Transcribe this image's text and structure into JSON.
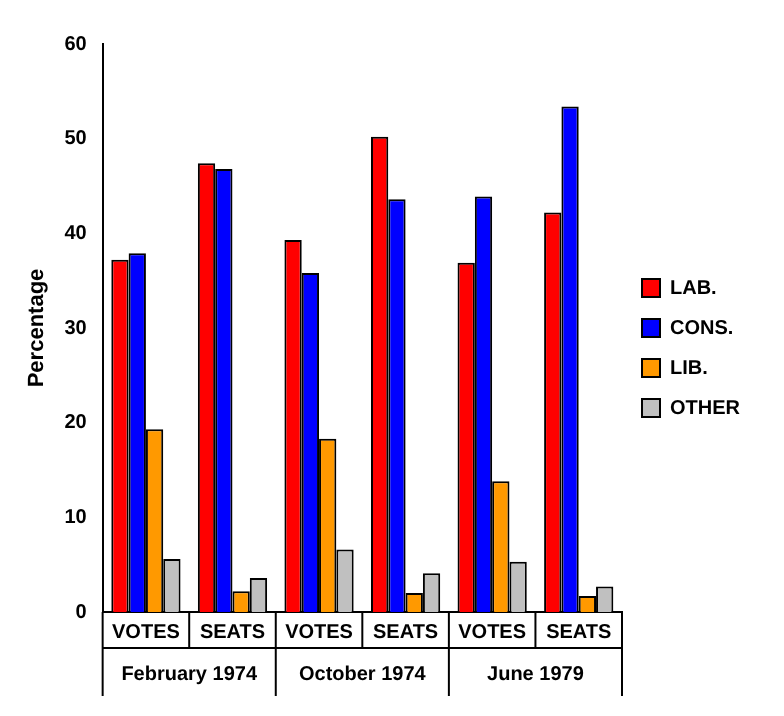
{
  "chart_data": {
    "type": "bar",
    "ylabel": "Percentage",
    "categories": [
      "VOTES",
      "SEATS",
      "VOTES",
      "SEATS",
      "VOTES",
      "SEATS"
    ],
    "series": [
      {
        "name": "LAB.",
        "color": "#ff0000",
        "values": [
          37.2,
          47.4,
          39.3,
          50.2,
          36.9,
          42.2
        ]
      },
      {
        "name": "CONS.",
        "color": "#0000ff",
        "values": [
          37.9,
          46.8,
          35.8,
          43.6,
          43.9,
          53.4
        ]
      },
      {
        "name": "LIB.",
        "color": "#ff9900",
        "values": [
          19.3,
          2.2,
          18.3,
          2.0,
          13.8,
          1.7
        ]
      },
      {
        "name": "OTHER",
        "color": "#c0c0c0",
        "values": [
          5.6,
          3.6,
          6.6,
          4.1,
          5.3,
          2.7
        ]
      }
    ],
    "annotations": [
      "February 1974",
      "October 1974",
      "June 1979"
    ],
    "ylim": [
      0,
      60
    ],
    "yticks": [
      0,
      10,
      20,
      30,
      40,
      50,
      60
    ],
    "grid": false,
    "legend": "right"
  }
}
